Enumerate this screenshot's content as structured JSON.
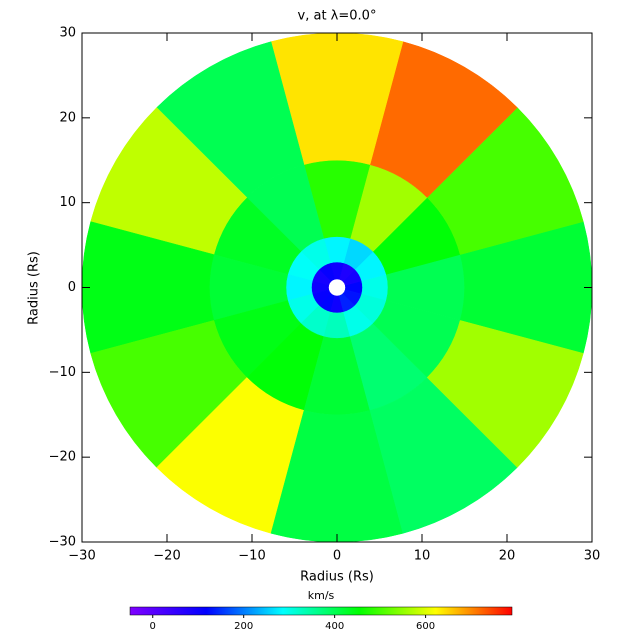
{
  "chart_data": {
    "type": "polar_heatmap",
    "title": "v, at λ=0.0°",
    "xlabel": "Radius (Rs)",
    "ylabel": "Radius (Rs)",
    "xlim": [
      -30,
      30
    ],
    "ylim": [
      -30,
      30
    ],
    "xticks": [
      {
        "value": -30,
        "label": "−30"
      },
      {
        "value": -20,
        "label": "−20"
      },
      {
        "value": -10,
        "label": "−10"
      },
      0,
      10,
      20,
      30
    ],
    "yticks": [
      {
        "value": -30,
        "label": "−30"
      },
      {
        "value": -20,
        "label": "−20"
      },
      {
        "value": -10,
        "label": "−10"
      },
      0,
      10,
      20,
      30
    ],
    "r_edges": [
      1,
      3,
      6,
      15,
      30
    ],
    "theta_edges": [
      -15,
      15,
      45,
      75,
      105,
      135,
      165,
      195,
      225,
      255,
      285,
      315,
      345
    ],
    "values": [
      [
        120,
        90,
        80,
        100,
        110,
        90,
        100,
        110,
        120,
        100,
        140,
        130
      ],
      [
        300,
        280,
        260,
        280,
        300,
        290,
        280,
        300,
        320,
        330,
        300,
        310
      ],
      [
        400,
        450,
        560,
        480,
        400,
        430,
        420,
        440,
        450,
        420,
        380,
        400
      ],
      [
        420,
        500,
        720,
        640,
        400,
        580,
        440,
        500,
        620,
        410,
        390,
        560
      ]
    ],
    "colorbar_label": "km/s",
    "clim": [
      -50,
      790
    ],
    "cticks": [
      0,
      200,
      400,
      600
    ],
    "colormap": [
      "#7f00ff",
      "#0000ff",
      "#00ffff",
      "#00ff00",
      "#ffff00",
      "#ff0000"
    ]
  }
}
